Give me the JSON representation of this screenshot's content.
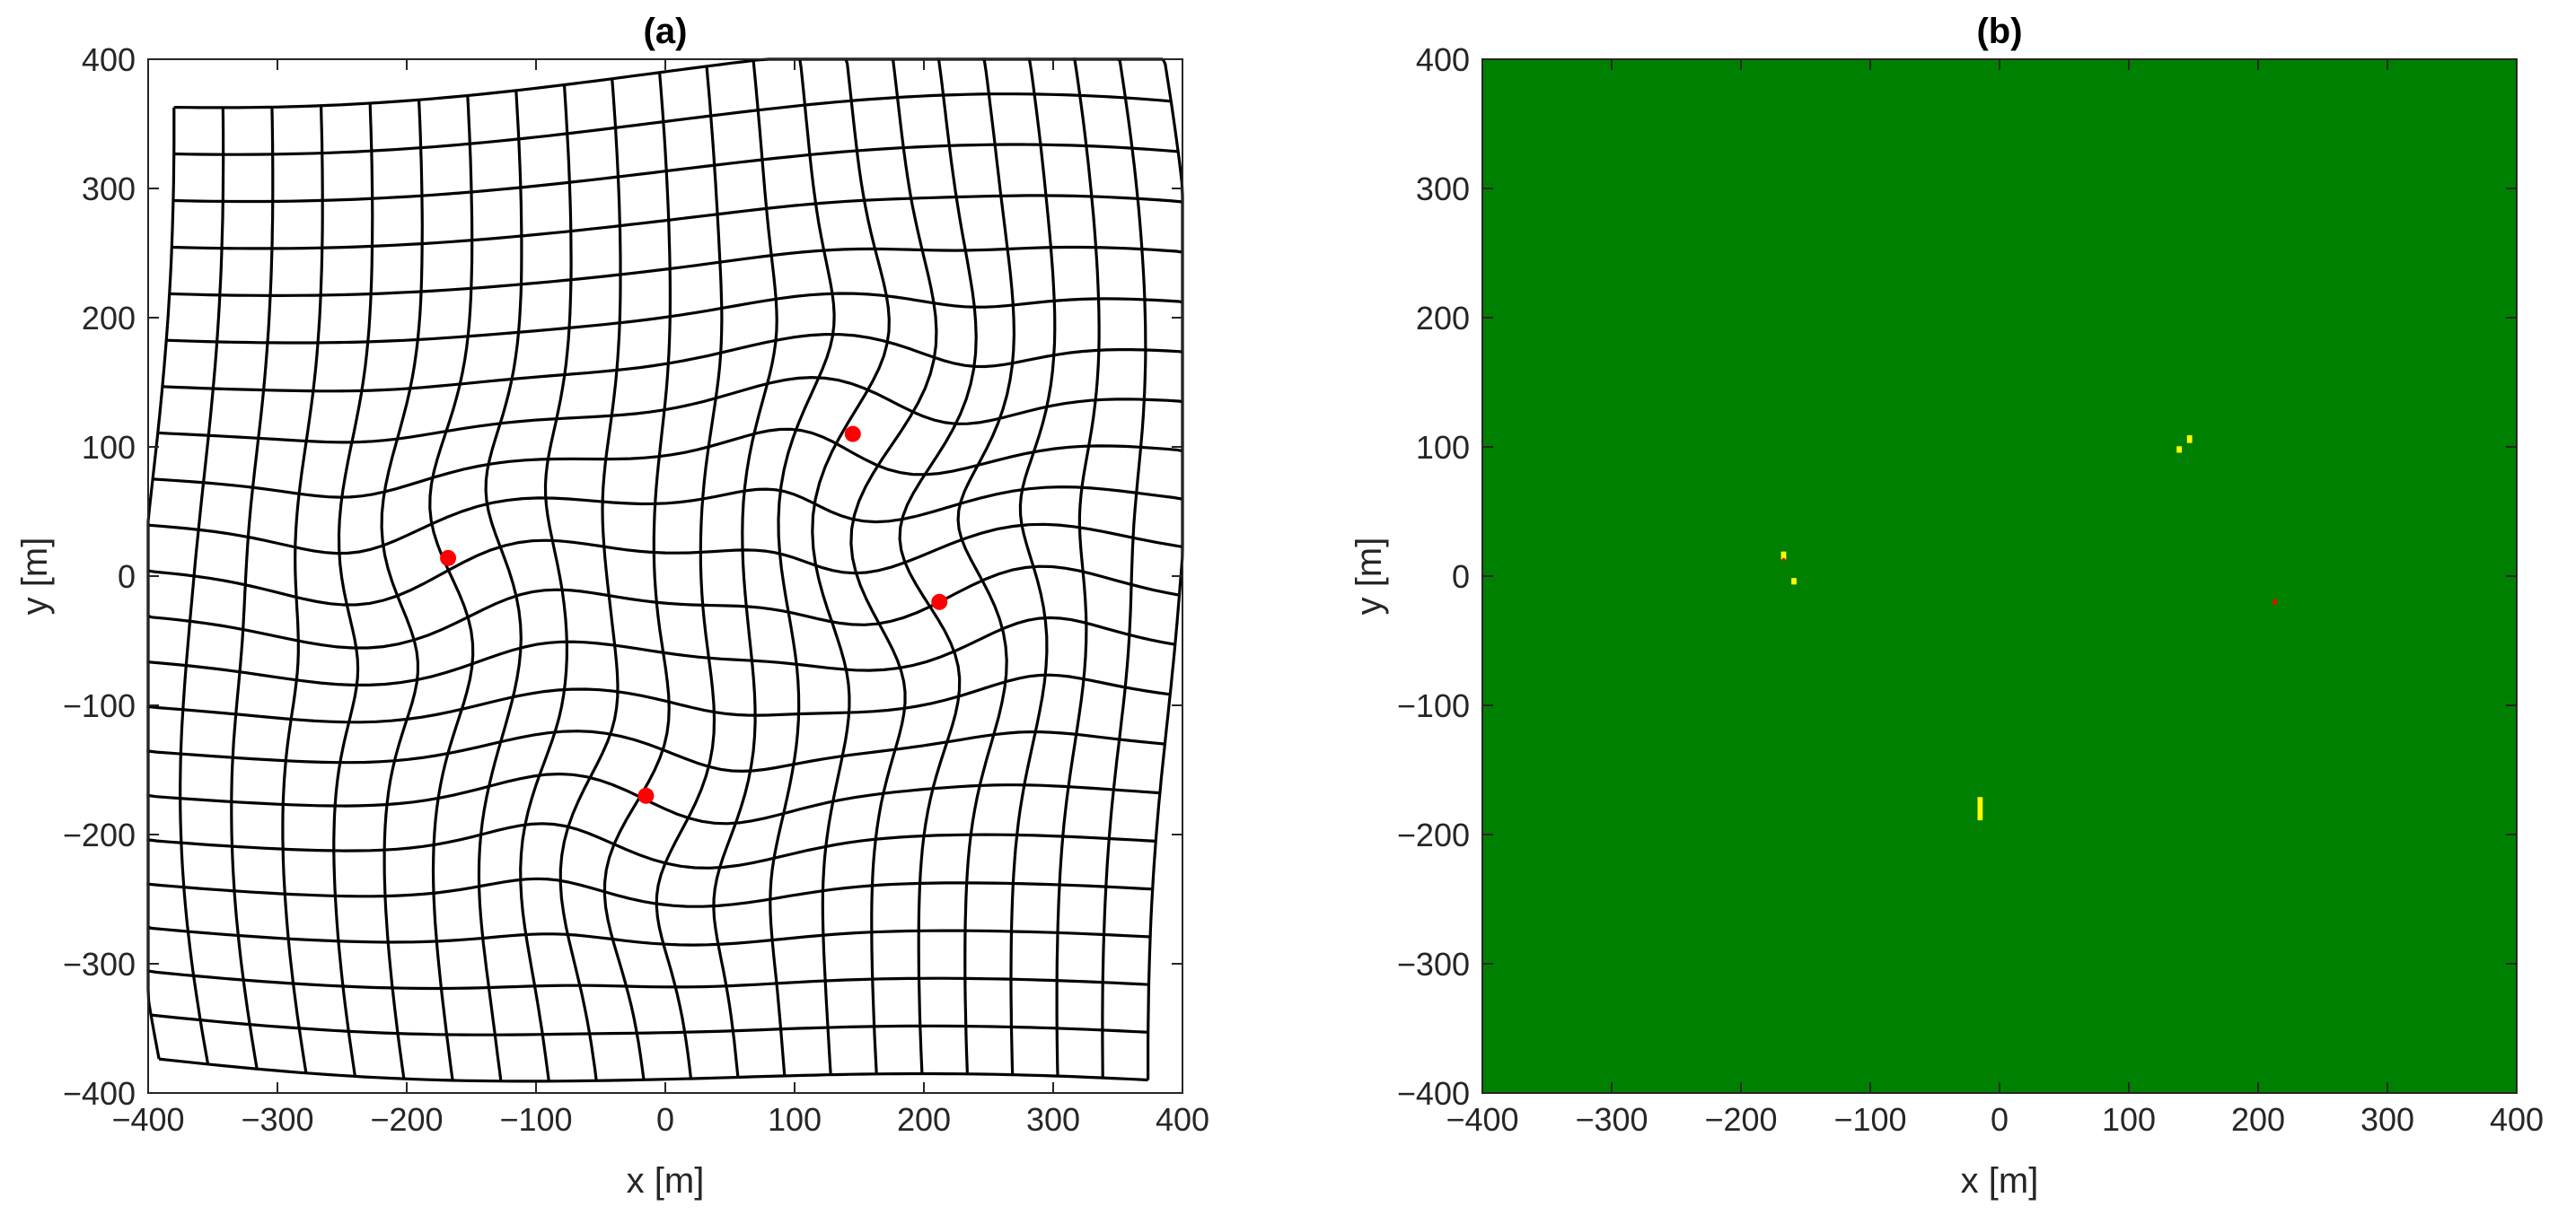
{
  "chart_data": [
    {
      "type": "scatter",
      "title": "(a)",
      "xlabel": "x [m]",
      "ylabel": "y [m]",
      "xlim": [
        -400,
        400
      ],
      "ylim": [
        -400,
        400
      ],
      "xticks": [
        "−400",
        "−300",
        "−200",
        "−100",
        "0",
        "100",
        "200",
        "300",
        "400"
      ],
      "yticks": [
        "−400",
        "−300",
        "−200",
        "−100",
        "0",
        "100",
        "200",
        "300",
        "400"
      ],
      "grid": false,
      "series": [
        {
          "marker": "circle",
          "color": "#ff0000",
          "points": [
            [
              -168,
              14
            ],
            [
              145,
              110
            ],
            [
              212,
              -20
            ],
            [
              -15,
              -170
            ]
          ]
        }
      ],
      "deformed_mesh": {
        "color": "#000000",
        "lines_per_direction": 22
      }
    },
    {
      "type": "heatmap",
      "title": "(b)",
      "xlabel": "x [m]",
      "ylabel": "y [m]",
      "xlim": [
        -400,
        400
      ],
      "ylim": [
        -400,
        400
      ],
      "xticks": [
        "−400",
        "−300",
        "−200",
        "−100",
        "0",
        "100",
        "200",
        "300",
        "400"
      ],
      "yticks": [
        "−400",
        "−300",
        "−200",
        "−100",
        "0",
        "100",
        "200",
        "300",
        "400"
      ],
      "background_color": "#008000",
      "series": [
        {
          "color": "#ffff00",
          "marks": [
            {
              "x": -167,
              "y": 16,
              "w": 4,
              "h": 6
            },
            {
              "x": -159,
              "y": -4,
              "w": 4,
              "h": 5
            },
            {
              "x": 139,
              "y": 98,
              "w": 4,
              "h": 5
            },
            {
              "x": 147,
              "y": 106,
              "w": 4,
              "h": 6
            },
            {
              "x": -15,
              "y": -180,
              "w": 4,
              "h": 18
            }
          ]
        },
        {
          "color": "#ff0000",
          "marks": [
            {
              "x": 213,
              "y": -20,
              "w": 3,
              "h": 4
            },
            {
              "x": -167,
              "y": 13,
              "w": 2,
              "h": 2
            }
          ]
        }
      ]
    }
  ]
}
